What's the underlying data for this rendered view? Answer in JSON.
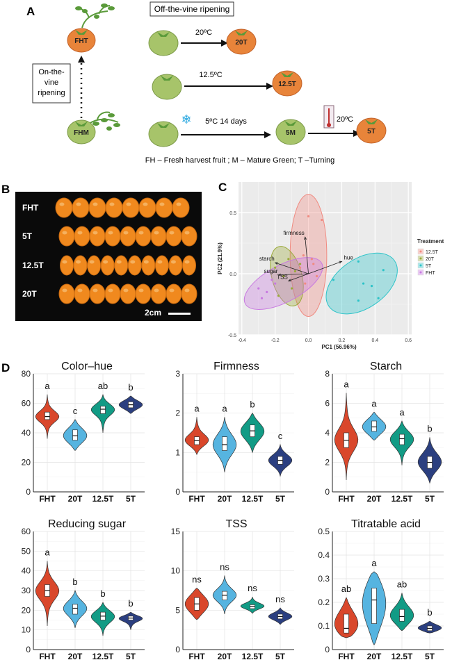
{
  "panelA": {
    "label": "A",
    "off_vine_title": "Off-the-vine ripening",
    "on_vine_lines": [
      "On-the-",
      "vine",
      "ripening"
    ],
    "fruits": {
      "fht": "FHT",
      "fhm": "FHM",
      "t20": "20T",
      "t125": "12.5T",
      "m5": "5M",
      "t5": "5T"
    },
    "arrows": {
      "a20": "20ºC",
      "a125": "12.5ºC",
      "a5": "5ºC  14 days",
      "a5b": "20ºC"
    },
    "legend": "FH – Fresh harvest fruit ; M –   Mature Green; T –Turning",
    "colors": {
      "ripe": "#e8843a",
      "green": "#a7c46a",
      "leaf": "#5a9a3a"
    }
  },
  "panelB": {
    "label": "B",
    "rows": [
      {
        "label": "FHT",
        "count": 8
      },
      {
        "label": "5T",
        "count": 9
      },
      {
        "label": "12.5T",
        "count": 10
      },
      {
        "label": "20T",
        "count": 9
      }
    ],
    "scale_label": "2cm"
  },
  "panelC": {
    "label": "C",
    "chart_data": {
      "type": "scatter",
      "xlabel": "PC1 (56.96%)",
      "ylabel": "PC2 (21.9%)",
      "xlim": [
        -0.42,
        0.62
      ],
      "ylim": [
        -0.5,
        0.75
      ],
      "xticks": [
        -0.4,
        -0.2,
        0.0,
        0.2,
        0.4,
        0.6
      ],
      "xtick_labels": [
        "-0.4",
        "-0.2",
        "0.0",
        "0.2",
        "0.4",
        "0.6"
      ],
      "yticks": [
        -0.5,
        0.0,
        0.5
      ],
      "ytick_labels": [
        "-0.5",
        "0.0",
        "0.5"
      ],
      "legend_title": "Treatment",
      "legend_position": "right",
      "series": [
        {
          "name": "12.5T",
          "color": "#f08a80",
          "points": [
            [
              0.0,
              0.47
            ],
            [
              0.08,
              0.44
            ],
            [
              -0.03,
              0.15
            ],
            [
              -0.05,
              0.05
            ],
            [
              0.02,
              0.12
            ],
            [
              0.05,
              -0.02
            ],
            [
              -0.02,
              -0.08
            ],
            [
              0.03,
              0.08
            ]
          ]
        },
        {
          "name": "20T",
          "color": "#9aaa3a",
          "points": [
            [
              -0.12,
              0.12
            ],
            [
              -0.08,
              0.02
            ],
            [
              -0.15,
              -0.02
            ],
            [
              -0.1,
              -0.12
            ],
            [
              -0.18,
              -0.18
            ],
            [
              -0.05,
              0.08
            ],
            [
              -0.2,
              0.05
            ]
          ]
        },
        {
          "name": "5T",
          "color": "#2cc3c8",
          "points": [
            [
              0.3,
              0.1
            ],
            [
              0.33,
              -0.08
            ],
            [
              0.38,
              -0.1
            ],
            [
              0.42,
              -0.2
            ],
            [
              0.3,
              -0.22
            ],
            [
              0.15,
              -0.05
            ],
            [
              0.45,
              0.03
            ]
          ]
        },
        {
          "name": "FHT",
          "color": "#c879e0",
          "points": [
            [
              -0.3,
              -0.12
            ],
            [
              -0.25,
              -0.15
            ],
            [
              -0.2,
              -0.08
            ],
            [
              -0.28,
              -0.2
            ],
            [
              -0.22,
              -0.05
            ]
          ]
        }
      ],
      "ellipses": [
        {
          "series": "12.5T",
          "cx": 0.0,
          "cy": 0.15,
          "rx": 0.11,
          "ry": 0.5,
          "angle": 0
        },
        {
          "series": "20T",
          "cx": -0.13,
          "cy": -0.02,
          "rx": 0.09,
          "ry": 0.25,
          "angle": -15
        },
        {
          "series": "5T",
          "cx": 0.32,
          "cy": -0.08,
          "rx": 0.24,
          "ry": 0.2,
          "angle": -35
        },
        {
          "series": "FHT",
          "cx": -0.15,
          "cy": -0.08,
          "rx": 0.26,
          "ry": 0.15,
          "angle": -28
        }
      ],
      "loadings": [
        {
          "name": "firmness",
          "x": -0.02,
          "y": 0.3
        },
        {
          "name": "hue",
          "x": 0.2,
          "y": 0.1
        },
        {
          "name": "starch",
          "x": -0.2,
          "y": 0.09
        },
        {
          "name": "sugar",
          "x": -0.18,
          "y": -0.01
        },
        {
          "name": "TSS",
          "x": -0.12,
          "y": -0.06
        }
      ]
    }
  },
  "panelD": {
    "label": "D",
    "chart_data": [
      {
        "type": "violin",
        "title": "Color–hue",
        "categories": [
          "FHT",
          "20T",
          "12.5T",
          "5T"
        ],
        "ylim": [
          0,
          80
        ],
        "yticks": [
          0,
          20,
          40,
          60,
          80
        ],
        "series": [
          {
            "category": "FHT",
            "color": "#d9472b",
            "min": 36,
            "q1": 49,
            "median": 51,
            "q3": 54,
            "max": 66,
            "sig": "a"
          },
          {
            "category": "20T",
            "color": "#56b4e0",
            "min": 28,
            "q1": 35,
            "median": 38,
            "q3": 42,
            "max": 49,
            "sig": "c"
          },
          {
            "category": "12.5T",
            "color": "#129b85",
            "min": 40,
            "q1": 53,
            "median": 56,
            "q3": 58,
            "max": 66,
            "sig": "ab"
          },
          {
            "category": "5T",
            "color": "#2b3f80",
            "min": 53,
            "q1": 57,
            "median": 59,
            "q3": 61,
            "max": 65,
            "sig": "b"
          }
        ]
      },
      {
        "type": "violin",
        "title": "Firmness",
        "categories": [
          "FHT",
          "20T",
          "12.5T",
          "5T"
        ],
        "ylim": [
          0,
          3
        ],
        "yticks": [
          0,
          1,
          2,
          3
        ],
        "series": [
          {
            "category": "FHT",
            "color": "#d9472b",
            "min": 0.95,
            "q1": 1.2,
            "median": 1.3,
            "q3": 1.4,
            "max": 1.9,
            "sig": "a"
          },
          {
            "category": "20T",
            "color": "#56b4e0",
            "min": 0.5,
            "q1": 1.05,
            "median": 1.2,
            "q3": 1.4,
            "max": 1.9,
            "sig": "a"
          },
          {
            "category": "12.5T",
            "color": "#129b85",
            "min": 1.0,
            "q1": 1.4,
            "median": 1.55,
            "q3": 1.7,
            "max": 2.0,
            "sig": "b"
          },
          {
            "category": "5T",
            "color": "#2b3f80",
            "min": 0.4,
            "q1": 0.7,
            "median": 0.8,
            "q3": 0.9,
            "max": 1.2,
            "sig": "c"
          }
        ]
      },
      {
        "type": "violin",
        "title": "Starch",
        "categories": [
          "FHT",
          "20T",
          "12.5T",
          "5T"
        ],
        "ylim": [
          0,
          8
        ],
        "yticks": [
          0,
          2,
          4,
          6,
          8
        ],
        "series": [
          {
            "category": "FHT",
            "color": "#d9472b",
            "min": 0.8,
            "q1": 3.0,
            "median": 3.5,
            "q3": 4.0,
            "max": 6.7,
            "sig": "a"
          },
          {
            "category": "20T",
            "color": "#56b4e0",
            "min": 3.5,
            "q1": 4.1,
            "median": 4.4,
            "q3": 4.8,
            "max": 5.4,
            "sig": "a"
          },
          {
            "category": "12.5T",
            "color": "#129b85",
            "min": 1.8,
            "q1": 3.2,
            "median": 3.6,
            "q3": 3.9,
            "max": 4.8,
            "sig": "a"
          },
          {
            "category": "5T",
            "color": "#2b3f80",
            "min": 0.6,
            "q1": 1.6,
            "median": 2.0,
            "q3": 2.4,
            "max": 3.7,
            "sig": "b"
          }
        ]
      },
      {
        "type": "violin",
        "title": "Reducing sugar",
        "categories": [
          "FHT",
          "20T",
          "12.5T",
          "5T"
        ],
        "ylim": [
          0,
          60
        ],
        "yticks": [
          0,
          10,
          20,
          30,
          40,
          50,
          60
        ],
        "series": [
          {
            "category": "FHT",
            "color": "#d9472b",
            "min": 12,
            "q1": 27,
            "median": 30,
            "q3": 33,
            "max": 45,
            "sig": "a"
          },
          {
            "category": "20T",
            "color": "#56b4e0",
            "min": 11,
            "q1": 18,
            "median": 21,
            "q3": 23,
            "max": 30,
            "sig": "b"
          },
          {
            "category": "12.5T",
            "color": "#129b85",
            "min": 7,
            "q1": 15,
            "median": 17,
            "q3": 19,
            "max": 24,
            "sig": "b"
          },
          {
            "category": "5T",
            "color": "#2b3f80",
            "min": 10,
            "q1": 15,
            "median": 16,
            "q3": 17,
            "max": 19,
            "sig": "b"
          }
        ]
      },
      {
        "type": "violin",
        "title": "TSS",
        "categories": [
          "FHT",
          "20T",
          "12.5T",
          "5T"
        ],
        "ylim": [
          0,
          15
        ],
        "yticks": [
          0,
          5,
          10,
          15
        ],
        "series": [
          {
            "category": "FHT",
            "color": "#d9472b",
            "min": 3.8,
            "q1": 5.0,
            "median": 5.8,
            "q3": 6.6,
            "max": 7.8,
            "sig": "ns"
          },
          {
            "category": "20T",
            "color": "#56b4e0",
            "min": 4.5,
            "q1": 6.3,
            "median": 6.9,
            "q3": 7.4,
            "max": 9.4,
            "sig": "ns"
          },
          {
            "category": "12.5T",
            "color": "#129b85",
            "min": 4.6,
            "q1": 5.2,
            "median": 5.5,
            "q3": 5.7,
            "max": 6.7,
            "sig": "ns"
          },
          {
            "category": "5T",
            "color": "#2b3f80",
            "min": 3.2,
            "q1": 3.9,
            "median": 4.2,
            "q3": 4.5,
            "max": 5.3,
            "sig": "ns"
          }
        ]
      },
      {
        "type": "violin",
        "title": "Titratable acid",
        "categories": [
          "FHT",
          "20T",
          "12.5T",
          "5T"
        ],
        "ylim": [
          0,
          0.5
        ],
        "yticks": [
          0,
          0.1,
          0.2,
          0.3,
          0.4,
          0.5
        ],
        "series": [
          {
            "category": "FHT",
            "color": "#d9472b",
            "min": 0.05,
            "q1": 0.07,
            "median": 0.09,
            "q3": 0.15,
            "max": 0.22,
            "sig": "ab"
          },
          {
            "category": "20T",
            "color": "#56b4e0",
            "min": 0.02,
            "q1": 0.11,
            "median": 0.21,
            "q3": 0.26,
            "max": 0.33,
            "sig": "a"
          },
          {
            "category": "12.5T",
            "color": "#129b85",
            "min": 0.08,
            "q1": 0.12,
            "median": 0.14,
            "q3": 0.17,
            "max": 0.24,
            "sig": "ab"
          },
          {
            "category": "5T",
            "color": "#2b3f80",
            "min": 0.07,
            "q1": 0.08,
            "median": 0.09,
            "q3": 0.1,
            "max": 0.12,
            "sig": "b"
          }
        ]
      }
    ]
  }
}
